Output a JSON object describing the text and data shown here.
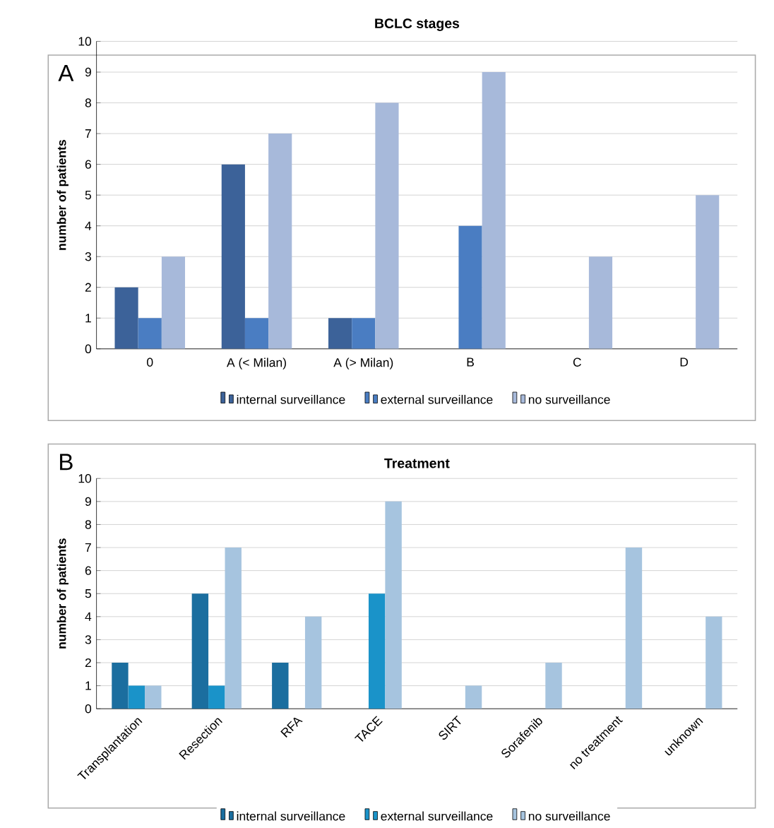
{
  "chart_data": [
    {
      "type": "bar",
      "title": "BCLC stages",
      "ylabel": "number of patients",
      "annotations": [
        "A"
      ],
      "categories": [
        "0",
        "A (< Milan)",
        "A (> Milan)",
        "B",
        "C",
        "D"
      ],
      "series": [
        {
          "name": "internal surveillance",
          "color": "#3c6299",
          "values": [
            2,
            6,
            1,
            0,
            0,
            0
          ]
        },
        {
          "name": "external surveillance",
          "color": "#4a7dc2",
          "values": [
            1,
            1,
            1,
            4,
            0,
            0
          ]
        },
        {
          "name": "no surveillance",
          "color": "#a7b9da",
          "values": [
            3,
            7,
            8,
            9,
            3,
            5
          ]
        }
      ],
      "ylim": [
        0,
        10
      ],
      "yticks": [
        0,
        1,
        2,
        3,
        4,
        5,
        6,
        7,
        8,
        9,
        10
      ],
      "grid": "y",
      "legend": "bottom"
    },
    {
      "type": "bar",
      "title": "Treatment",
      "ylabel": "number of patients",
      "annotations": [
        "B"
      ],
      "categories": [
        "Transplantation",
        "Resection",
        "RFA",
        "TACE",
        "SIRT",
        "Sorafenib",
        "no treatment",
        "unknown"
      ],
      "series": [
        {
          "name": "internal surveillance",
          "color": "#1b6e9f",
          "values": [
            2,
            5,
            2,
            0,
            0,
            0,
            0,
            0
          ]
        },
        {
          "name": "external surveillance",
          "color": "#1a93c9",
          "values": [
            1,
            1,
            0,
            5,
            0,
            0,
            0,
            0
          ]
        },
        {
          "name": "no surveillance",
          "color": "#a6c4df",
          "values": [
            1,
            7,
            4,
            9,
            1,
            2,
            7,
            4
          ]
        }
      ],
      "ylim": [
        0,
        10
      ],
      "yticks": [
        0,
        1,
        2,
        3,
        4,
        5,
        6,
        7,
        8,
        9,
        10
      ],
      "grid": "y",
      "legend": "bottom"
    }
  ]
}
